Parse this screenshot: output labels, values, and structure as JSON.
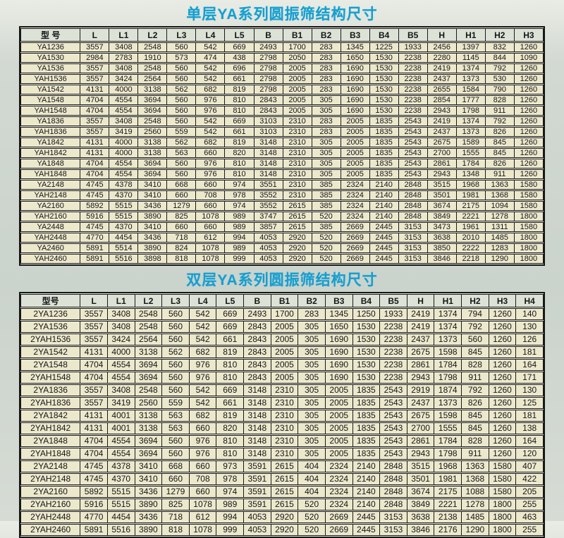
{
  "colors": {
    "title_accent": "#149fd0",
    "header_cell_bg": "#dce3d6",
    "data_cell_bg": "#ece8cc",
    "grid_border": "#1a1a1a",
    "page_bg": "#cbd3cd"
  },
  "tables": [
    {
      "title": "单层YA系列圆振筛结构尺寸",
      "headers": [
        "型 号",
        "L",
        "L1",
        "L2",
        "L3",
        "L4",
        "L5",
        "B",
        "B1",
        "B2",
        "B3",
        "B4",
        "B5",
        "H",
        "H1",
        "H2",
        "H3"
      ],
      "rows": [
        [
          "YA1236",
          3557,
          3408,
          2548,
          560,
          542,
          669,
          2493,
          1700,
          283,
          1345,
          1225,
          1933,
          2456,
          1397,
          832,
          1260
        ],
        [
          "YA1530",
          2984,
          2783,
          1910,
          573,
          474,
          438,
          2798,
          2050,
          283,
          1650,
          1530,
          2238,
          2280,
          1145,
          844,
          1090
        ],
        [
          "YA1536",
          3557,
          3408,
          2548,
          560,
          542,
          696,
          2798,
          2005,
          283,
          1690,
          1530,
          2238,
          2419,
          1374,
          792,
          1260
        ],
        [
          "YAH1536",
          3557,
          3424,
          2564,
          560,
          542,
          661,
          2798,
          2005,
          283,
          1690,
          1530,
          2238,
          2437,
          1373,
          530,
          1260
        ],
        [
          "YA1542",
          4131,
          4000,
          3138,
          562,
          682,
          819,
          2798,
          2005,
          283,
          1690,
          1530,
          2238,
          2655,
          1584,
          790,
          1260
        ],
        [
          "YA1548",
          4704,
          4554,
          3694,
          560,
          976,
          810,
          2843,
          2005,
          305,
          1690,
          1530,
          2238,
          2854,
          1777,
          828,
          1260
        ],
        [
          "YAH1548",
          4704,
          4554,
          3694,
          560,
          976,
          810,
          2843,
          2005,
          305,
          1690,
          1530,
          2238,
          2943,
          1798,
          911,
          1260
        ],
        [
          "YA1836",
          3557,
          3408,
          2548,
          560,
          542,
          669,
          3103,
          2310,
          283,
          2005,
          1835,
          2543,
          2419,
          1374,
          792,
          1260
        ],
        [
          "YAH1836",
          3557,
          3419,
          2560,
          559,
          542,
          661,
          3103,
          2310,
          283,
          2005,
          1835,
          2543,
          2437,
          1373,
          826,
          1260
        ],
        [
          "YA1842",
          4131,
          4000,
          3138,
          562,
          682,
          819,
          3148,
          2310,
          305,
          2005,
          1835,
          2543,
          2675,
          1589,
          845,
          1260
        ],
        [
          "YAH1842",
          4131,
          4000,
          3138,
          563,
          660,
          820,
          3148,
          2310,
          305,
          2005,
          1835,
          2543,
          2700,
          1555,
          845,
          1260
        ],
        [
          "YA1848",
          4704,
          4554,
          3694,
          560,
          976,
          810,
          3148,
          2310,
          305,
          2005,
          1835,
          2543,
          2861,
          1784,
          826,
          1260
        ],
        [
          "YAH1848",
          4704,
          4554,
          3694,
          560,
          976,
          810,
          3148,
          2310,
          305,
          2005,
          1835,
          2543,
          2943,
          1348,
          911,
          1260
        ],
        [
          "YA2148",
          4745,
          4378,
          3410,
          668,
          660,
          974,
          3551,
          2310,
          385,
          2324,
          2140,
          2848,
          3515,
          1968,
          1363,
          1580
        ],
        [
          "YAH2148",
          4745,
          4370,
          3410,
          660,
          708,
          978,
          3552,
          2310,
          385,
          2324,
          2140,
          2848,
          3501,
          1981,
          1368,
          1580
        ],
        [
          "YA2160",
          5892,
          5515,
          3436,
          1279,
          660,
          974,
          3552,
          2615,
          385,
          2324,
          2140,
          2848,
          3674,
          2175,
          1094,
          1580
        ],
        [
          "YAH2160",
          5916,
          5515,
          3890,
          825,
          1078,
          989,
          3747,
          2615,
          520,
          2324,
          2140,
          2848,
          3849,
          2221,
          1278,
          1800
        ],
        [
          "YA2448",
          4745,
          4370,
          3410,
          660,
          660,
          989,
          3857,
          2615,
          385,
          2669,
          2445,
          3153,
          3473,
          1961,
          1311,
          1580
        ],
        [
          "YAH2448",
          4770,
          4454,
          3436,
          718,
          612,
          994,
          4053,
          2920,
          520,
          2669,
          2445,
          3153,
          3638,
          2010,
          1485,
          1800
        ],
        [
          "YA2460",
          5891,
          5514,
          3890,
          824,
          1078,
          989,
          4053,
          2920,
          520,
          2669,
          2445,
          3153,
          3850,
          2222,
          1283,
          1800
        ],
        [
          "YAH2460",
          5891,
          5516,
          3898,
          818,
          1078,
          999,
          4053,
          2920,
          520,
          2669,
          2445,
          3153,
          3846,
          2218,
          1290,
          1800
        ]
      ]
    },
    {
      "title": "双层YA系列圆振筛结构尺寸",
      "headers": [
        "型号",
        "L",
        "L1",
        "L2",
        "L3",
        "L4",
        "L5",
        "B",
        "B1",
        "B2",
        "B3",
        "B4",
        "B5",
        "H",
        "H1",
        "H2",
        "H3",
        "H4"
      ],
      "rows": [
        [
          "2YA1236",
          3557,
          3408,
          2548,
          560,
          542,
          669,
          2493,
          1700,
          283,
          1345,
          1250,
          1933,
          2419,
          1374,
          794,
          1260,
          140
        ],
        [
          "2YA1536",
          3557,
          3408,
          2548,
          560,
          542,
          669,
          2843,
          2005,
          305,
          1650,
          1530,
          2238,
          2419,
          1374,
          792,
          1260,
          130
        ],
        [
          "2YAH1536",
          3557,
          3424,
          2564,
          560,
          542,
          661,
          2843,
          2005,
          305,
          1690,
          1530,
          2238,
          2437,
          1373,
          560,
          1260,
          126
        ],
        [
          "2YA1542",
          4131,
          4000,
          3138,
          562,
          682,
          819,
          2843,
          2005,
          305,
          1690,
          1530,
          2238,
          2675,
          1598,
          845,
          1260,
          181
        ],
        [
          "2YA1548",
          4704,
          4554,
          3694,
          560,
          976,
          810,
          2843,
          2005,
          305,
          1690,
          1530,
          2238,
          2861,
          1784,
          828,
          1260,
          164
        ],
        [
          "2YAH1548",
          4704,
          4554,
          3694,
          560,
          976,
          810,
          2843,
          2005,
          305,
          1690,
          1530,
          2238,
          2943,
          1798,
          911,
          1260,
          171
        ],
        [
          "2YA1836",
          3557,
          3408,
          2548,
          560,
          542,
          669,
          3148,
          2310,
          305,
          2005,
          1835,
          2543,
          2919,
          1874,
          792,
          1260,
          130
        ],
        [
          "2YAH1836",
          3557,
          3419,
          2560,
          559,
          542,
          661,
          3148,
          2310,
          305,
          2005,
          1835,
          2543,
          2437,
          1373,
          826,
          1260,
          125
        ],
        [
          "2YA1842",
          4131,
          4001,
          3138,
          563,
          682,
          819,
          3148,
          2310,
          305,
          2005,
          1835,
          2543,
          2675,
          1598,
          845,
          1260,
          181
        ],
        [
          "2YAH1842",
          4131,
          4001,
          3138,
          563,
          660,
          820,
          3148,
          2310,
          305,
          2005,
          1835,
          2543,
          2700,
          1555,
          845,
          1260,
          138
        ],
        [
          "2YA1848",
          4704,
          4554,
          3694,
          560,
          976,
          810,
          3148,
          2310,
          305,
          2005,
          1835,
          2543,
          2861,
          1784,
          828,
          1260,
          164
        ],
        [
          "2YAH1848",
          4704,
          4554,
          3694,
          560,
          976,
          810,
          3148,
          2310,
          305,
          2005,
          1835,
          2543,
          2943,
          1798,
          911,
          1260,
          120
        ],
        [
          "2YA2148",
          4745,
          4378,
          3410,
          668,
          660,
          973,
          3591,
          2615,
          404,
          2324,
          2140,
          2848,
          3515,
          1968,
          1363,
          1580,
          407
        ],
        [
          "2YAH2148",
          4745,
          4370,
          3410,
          660,
          708,
          978,
          3591,
          2615,
          404,
          2324,
          2140,
          2848,
          3501,
          1981,
          1368,
          1580,
          422
        ],
        [
          "2YA2160",
          5892,
          5515,
          3436,
          1279,
          660,
          974,
          3591,
          2615,
          404,
          2324,
          2140,
          2848,
          3674,
          2175,
          1088,
          1580,
          205
        ],
        [
          "2YAH2160",
          5916,
          5515,
          3890,
          825,
          1078,
          989,
          3591,
          2615,
          520,
          2324,
          2140,
          2848,
          3849,
          2221,
          1278,
          1800,
          255
        ],
        [
          "2YAH2448",
          4770,
          4454,
          3436,
          718,
          612,
          994,
          4053,
          2920,
          520,
          2669,
          2445,
          3153,
          3638,
          2138,
          1485,
          1800,
          463
        ],
        [
          "2YAH2460",
          5891,
          5516,
          3890,
          818,
          1078,
          999,
          4053,
          2920,
          520,
          2669,
          2445,
          3153,
          3846,
          2176,
          1290,
          1800,
          255
        ]
      ]
    }
  ]
}
